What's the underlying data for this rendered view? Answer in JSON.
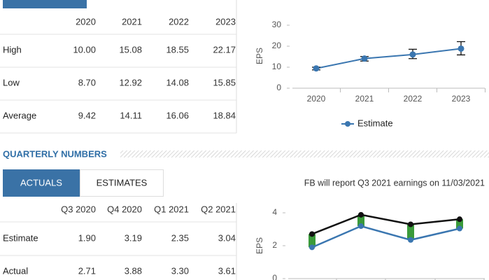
{
  "annual": {
    "headers": [
      "2020",
      "2021",
      "2022",
      "2023"
    ],
    "rows": [
      {
        "label": "High",
        "values": [
          "10.00",
          "15.08",
          "18.55",
          "22.17"
        ]
      },
      {
        "label": "Low",
        "values": [
          "8.70",
          "12.92",
          "14.08",
          "15.85"
        ]
      },
      {
        "label": "Average",
        "values": [
          "9.42",
          "14.11",
          "16.06",
          "18.84"
        ]
      }
    ]
  },
  "section_title": "QUARTERLY NUMBERS",
  "tabs": [
    "ACTUALS",
    "ESTIMATES"
  ],
  "notice": "FB will report Q3 2021 earnings on 11/03/2021",
  "quarterly": {
    "headers": [
      "Q3 2020",
      "Q4 2020",
      "Q1 2021",
      "Q2 2021"
    ],
    "rows": [
      {
        "label": "Estimate",
        "values": [
          "1.90",
          "3.19",
          "2.35",
          "3.04"
        ]
      },
      {
        "label": "Actual",
        "values": [
          "2.71",
          "3.88",
          "3.30",
          "3.61"
        ]
      }
    ]
  },
  "chart_data": [
    {
      "type": "errorline",
      "ylabel": "EPS",
      "categories": [
        "2020",
        "2021",
        "2022",
        "2023"
      ],
      "ylim": [
        0,
        30
      ],
      "yticks": [
        0,
        10,
        20,
        30
      ],
      "series": [
        {
          "name": "Estimate",
          "color": "#3a76b0",
          "values": [
            9.42,
            14.11,
            16.06,
            18.84
          ],
          "low": [
            8.7,
            12.92,
            14.08,
            15.85
          ],
          "high": [
            10.0,
            15.08,
            18.55,
            22.17
          ]
        }
      ]
    },
    {
      "type": "surprise",
      "ylabel": "EPS",
      "ylim": [
        0,
        4
      ],
      "yticks": [
        0,
        2,
        4
      ],
      "surprise_color": "#3a9a3a",
      "series": [
        {
          "color": "#3a76b0",
          "values": [
            1.9,
            3.19,
            2.35,
            3.04
          ]
        },
        {
          "color": "#111111",
          "values": [
            2.71,
            3.88,
            3.3,
            3.61
          ]
        }
      ]
    }
  ]
}
